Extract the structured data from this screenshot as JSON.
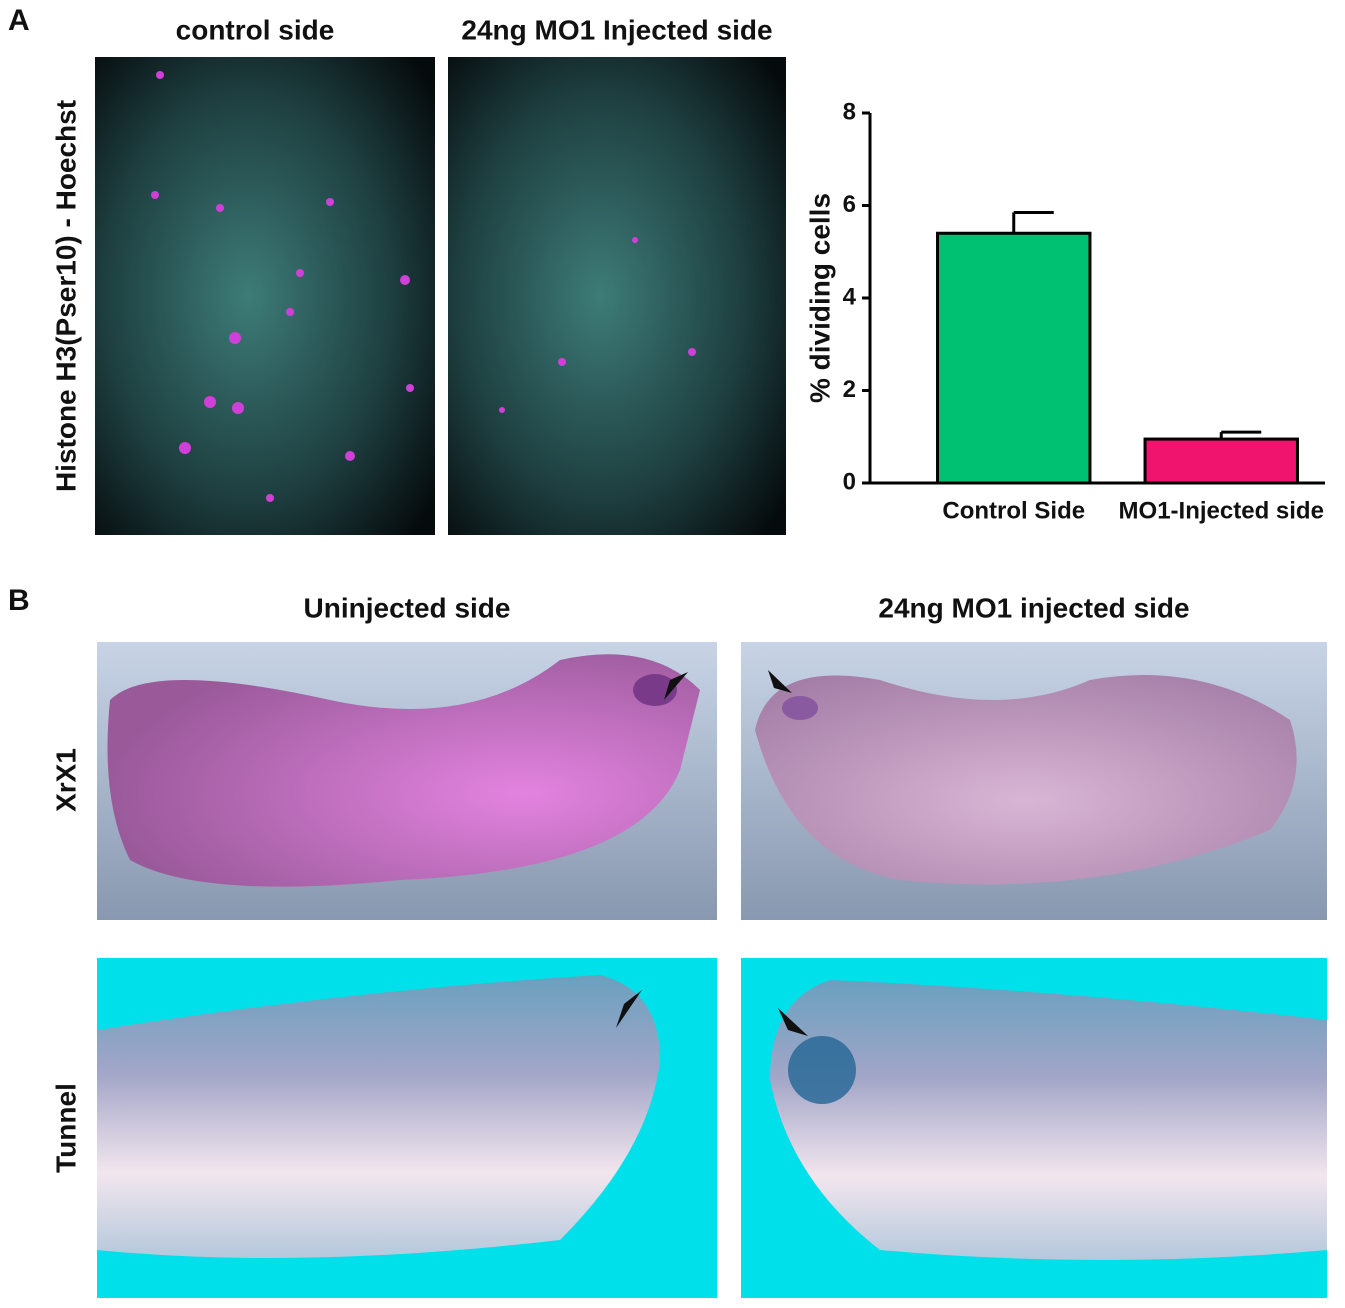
{
  "panel_labels": [
    "A",
    "B"
  ],
  "panel_a": {
    "image_titles": [
      "control side",
      "24ng MO1 Injected side"
    ],
    "row_label": "Histone H3(Pser10) - Hoechst"
  },
  "panel_b": {
    "column_titles": [
      "Uninjected side",
      "24ng MO1 injected side"
    ],
    "row_labels": [
      "XrX1",
      "Tunnel"
    ]
  },
  "chart_data": {
    "type": "bar",
    "ylabel": "% dividing cells",
    "categories": [
      "Control Side",
      "MO1-Injected side"
    ],
    "values": [
      5.4,
      0.95
    ],
    "errors": [
      0.45,
      0.15
    ],
    "colors": [
      "#00c072",
      "#f0146e"
    ],
    "ylim": [
      0,
      8
    ],
    "yticks": [
      0,
      2,
      4,
      6,
      8
    ],
    "grid": false
  }
}
